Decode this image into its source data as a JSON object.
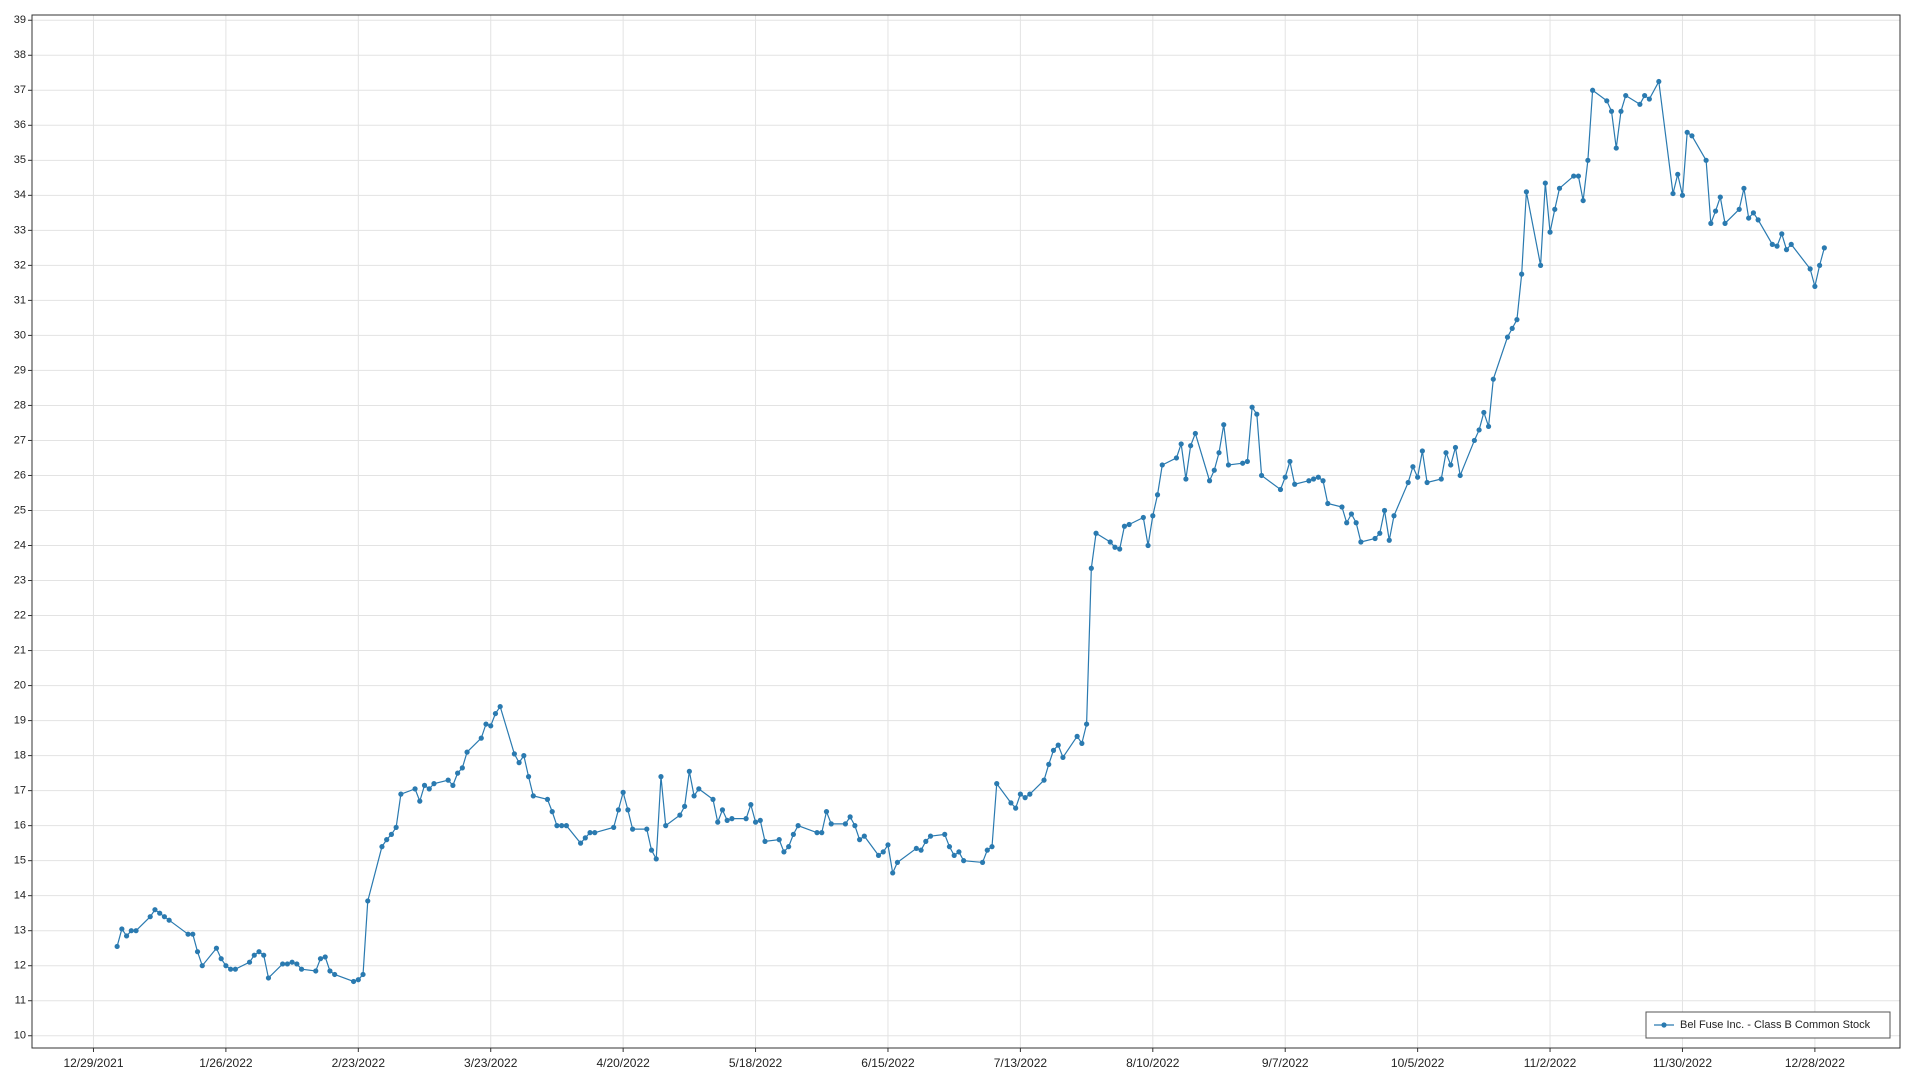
{
  "chart_data": {
    "type": "line",
    "x": [
      "1/3/2022",
      "1/4/2022",
      "1/5/2022",
      "1/6/2022",
      "1/7/2022",
      "1/10/2022",
      "1/11/2022",
      "1/12/2022",
      "1/13/2022",
      "1/14/2022",
      "1/18/2022",
      "1/19/2022",
      "1/20/2022",
      "1/21/2022",
      "1/24/2022",
      "1/25/2022",
      "1/26/2022",
      "1/27/2022",
      "1/28/2022",
      "1/31/2022",
      "2/1/2022",
      "2/2/2022",
      "2/3/2022",
      "2/4/2022",
      "2/7/2022",
      "2/8/2022",
      "2/9/2022",
      "2/10/2022",
      "2/11/2022",
      "2/14/2022",
      "2/15/2022",
      "2/16/2022",
      "2/17/2022",
      "2/18/2022",
      "2/22/2022",
      "2/23/2022",
      "2/24/2022",
      "2/25/2022",
      "2/28/2022",
      "3/1/2022",
      "3/2/2022",
      "3/3/2022",
      "3/4/2022",
      "3/7/2022",
      "3/8/2022",
      "3/9/2022",
      "3/10/2022",
      "3/11/2022",
      "3/14/2022",
      "3/15/2022",
      "3/16/2022",
      "3/17/2022",
      "3/18/2022",
      "3/21/2022",
      "3/22/2022",
      "3/23/2022",
      "3/24/2022",
      "3/25/2022",
      "3/28/2022",
      "3/29/2022",
      "3/30/2022",
      "3/31/2022",
      "4/1/2022",
      "4/4/2022",
      "4/5/2022",
      "4/6/2022",
      "4/7/2022",
      "4/8/2022",
      "4/11/2022",
      "4/12/2022",
      "4/13/2022",
      "4/14/2022",
      "4/18/2022",
      "4/19/2022",
      "4/20/2022",
      "4/21/2022",
      "4/22/2022",
      "4/25/2022",
      "4/26/2022",
      "4/27/2022",
      "4/28/2022",
      "4/29/2022",
      "5/2/2022",
      "5/3/2022",
      "5/4/2022",
      "5/5/2022",
      "5/6/2022",
      "5/9/2022",
      "5/10/2022",
      "5/11/2022",
      "5/12/2022",
      "5/13/2022",
      "5/16/2022",
      "5/17/2022",
      "5/18/2022",
      "5/19/2022",
      "5/20/2022",
      "5/23/2022",
      "5/24/2022",
      "5/25/2022",
      "5/26/2022",
      "5/27/2022",
      "5/31/2022",
      "6/1/2022",
      "6/2/2022",
      "6/3/2022",
      "6/6/2022",
      "6/7/2022",
      "6/8/2022",
      "6/9/2022",
      "6/10/2022",
      "6/13/2022",
      "6/14/2022",
      "6/15/2022",
      "6/16/2022",
      "6/17/2022",
      "6/21/2022",
      "6/22/2022",
      "6/23/2022",
      "6/24/2022",
      "6/27/2022",
      "6/28/2022",
      "6/29/2022",
      "6/30/2022",
      "7/1/2022",
      "7/5/2022",
      "7/6/2022",
      "7/7/2022",
      "7/8/2022",
      "7/11/2022",
      "7/12/2022",
      "7/13/2022",
      "7/14/2022",
      "7/15/2022",
      "7/18/2022",
      "7/19/2022",
      "7/20/2022",
      "7/21/2022",
      "7/22/2022",
      "7/25/2022",
      "7/26/2022",
      "7/27/2022",
      "7/28/2022",
      "7/29/2022",
      "8/1/2022",
      "8/2/2022",
      "8/3/2022",
      "8/4/2022",
      "8/5/2022",
      "8/8/2022",
      "8/9/2022",
      "8/10/2022",
      "8/11/2022",
      "8/12/2022",
      "8/15/2022",
      "8/16/2022",
      "8/17/2022",
      "8/18/2022",
      "8/19/2022",
      "8/22/2022",
      "8/23/2022",
      "8/24/2022",
      "8/25/2022",
      "8/26/2022",
      "8/29/2022",
      "8/30/2022",
      "8/31/2022",
      "9/1/2022",
      "9/2/2022",
      "9/6/2022",
      "9/7/2022",
      "9/8/2022",
      "9/9/2022",
      "9/12/2022",
      "9/13/2022",
      "9/14/2022",
      "9/15/2022",
      "9/16/2022",
      "9/19/2022",
      "9/20/2022",
      "9/21/2022",
      "9/22/2022",
      "9/23/2022",
      "9/26/2022",
      "9/27/2022",
      "9/28/2022",
      "9/29/2022",
      "9/30/2022",
      "10/3/2022",
      "10/4/2022",
      "10/5/2022",
      "10/6/2022",
      "10/7/2022",
      "10/10/2022",
      "10/11/2022",
      "10/12/2022",
      "10/13/2022",
      "10/14/2022",
      "10/17/2022",
      "10/18/2022",
      "10/19/2022",
      "10/20/2022",
      "10/21/2022",
      "10/24/2022",
      "10/25/2022",
      "10/26/2022",
      "10/27/2022",
      "10/28/2022",
      "10/31/2022",
      "11/1/2022",
      "11/2/2022",
      "11/3/2022",
      "11/4/2022",
      "11/7/2022",
      "11/8/2022",
      "11/9/2022",
      "11/10/2022",
      "11/11/2022",
      "11/14/2022",
      "11/15/2022",
      "11/16/2022",
      "11/17/2022",
      "11/18/2022",
      "11/21/2022",
      "11/22/2022",
      "11/23/2022",
      "11/25/2022",
      "11/28/2022",
      "11/29/2022",
      "11/30/2022",
      "12/1/2022",
      "12/2/2022",
      "12/5/2022",
      "12/6/2022",
      "12/7/2022",
      "12/8/2022",
      "12/9/2022",
      "12/12/2022",
      "12/13/2022",
      "12/14/2022",
      "12/15/2022",
      "12/16/2022",
      "12/19/2022",
      "12/20/2022",
      "12/21/2022",
      "12/22/2022",
      "12/23/2022",
      "12/27/2022",
      "12/28/2022",
      "12/29/2022",
      "12/30/2022"
    ],
    "series": [
      {
        "name": "Bel Fuse Inc. - Class B Common Stock",
        "color": "#2a7ab0",
        "values": [
          12.55,
          13.05,
          12.85,
          13.0,
          13.0,
          13.4,
          13.6,
          13.5,
          13.4,
          13.3,
          12.9,
          12.9,
          12.4,
          12.0,
          12.5,
          12.2,
          12.0,
          11.9,
          11.9,
          12.1,
          12.3,
          12.4,
          12.3,
          11.65,
          12.05,
          12.05,
          12.1,
          12.05,
          11.9,
          11.85,
          12.2,
          12.25,
          11.85,
          11.75,
          11.55,
          11.6,
          11.75,
          13.85,
          15.4,
          15.6,
          15.75,
          15.95,
          16.9,
          17.05,
          16.7,
          17.15,
          17.05,
          17.2,
          17.3,
          17.15,
          17.5,
          17.65,
          18.1,
          18.5,
          18.9,
          18.85,
          19.2,
          19.4,
          18.05,
          17.8,
          18.0,
          17.4,
          16.85,
          16.75,
          16.4,
          16.0,
          16.0,
          16.0,
          15.5,
          15.65,
          15.8,
          15.8,
          15.95,
          16.45,
          16.95,
          16.45,
          15.9,
          15.9,
          15.3,
          15.05,
          17.4,
          16.0,
          16.3,
          16.55,
          17.55,
          16.85,
          17.05,
          16.75,
          16.1,
          16.45,
          16.15,
          16.2,
          16.2,
          16.6,
          16.1,
          16.15,
          15.55,
          15.6,
          15.25,
          15.4,
          15.75,
          16.0,
          15.8,
          15.8,
          16.4,
          16.05,
          16.05,
          16.25,
          16.0,
          15.6,
          15.7,
          15.15,
          15.25,
          15.45,
          14.65,
          14.95,
          15.35,
          15.3,
          15.55,
          15.7,
          15.75,
          15.4,
          15.15,
          15.25,
          15.0,
          14.95,
          15.3,
          15.4,
          17.2,
          16.65,
          16.5,
          16.9,
          16.8,
          16.9,
          17.3,
          17.75,
          18.15,
          18.3,
          17.95,
          18.55,
          18.35,
          18.9,
          23.35,
          24.35,
          24.1,
          23.95,
          23.9,
          24.55,
          24.6,
          24.8,
          24.0,
          24.85,
          25.45,
          26.3,
          26.5,
          26.9,
          25.9,
          26.85,
          27.2,
          25.85,
          26.15,
          26.65,
          27.45,
          26.3,
          26.35,
          26.4,
          27.95,
          27.75,
          26.0,
          25.6,
          25.95,
          26.4,
          25.75,
          25.85,
          25.9,
          25.95,
          25.85,
          25.2,
          25.1,
          24.65,
          24.9,
          24.65,
          24.1,
          24.2,
          24.35,
          25.0,
          24.15,
          24.85,
          25.8,
          26.25,
          25.95,
          26.7,
          25.8,
          25.9,
          26.65,
          26.3,
          26.8,
          26.0,
          27.0,
          27.3,
          27.8,
          27.4,
          28.75,
          29.95,
          30.2,
          30.45,
          31.75,
          34.1,
          32.0,
          34.35,
          32.95,
          33.6,
          34.2,
          34.55,
          34.55,
          33.85,
          35.0,
          37.0,
          36.7,
          36.4,
          35.35,
          36.4,
          36.85,
          36.6,
          36.85,
          36.75,
          37.25,
          34.05,
          34.6,
          34.0,
          35.8,
          35.7,
          35.0,
          33.2,
          33.55,
          33.95,
          33.2,
          33.6,
          34.2,
          33.35,
          33.5,
          33.3,
          32.6,
          32.55,
          32.9,
          32.45,
          32.6,
          31.9,
          31.4,
          32.0,
          32.5
        ]
      }
    ],
    "xlim": [
      "12/16/2021",
      "1/15/2023"
    ],
    "xticks": [
      "12/29/2021",
      "1/26/2022",
      "2/23/2022",
      "3/23/2022",
      "4/20/2022",
      "5/18/2022",
      "6/15/2022",
      "7/13/2022",
      "8/10/2022",
      "9/7/2022",
      "10/5/2022",
      "11/2/2022",
      "11/30/2022",
      "12/28/2022"
    ],
    "ylim": [
      9.65,
      39.15
    ],
    "yticks": [
      10,
      11,
      12,
      13,
      14,
      15,
      16,
      17,
      18,
      19,
      20,
      21,
      22,
      23,
      24,
      25,
      26,
      27,
      28,
      29,
      30,
      31,
      32,
      33,
      34,
      35,
      36,
      37,
      38,
      39
    ],
    "grid": true,
    "legend": "bottom-right"
  }
}
